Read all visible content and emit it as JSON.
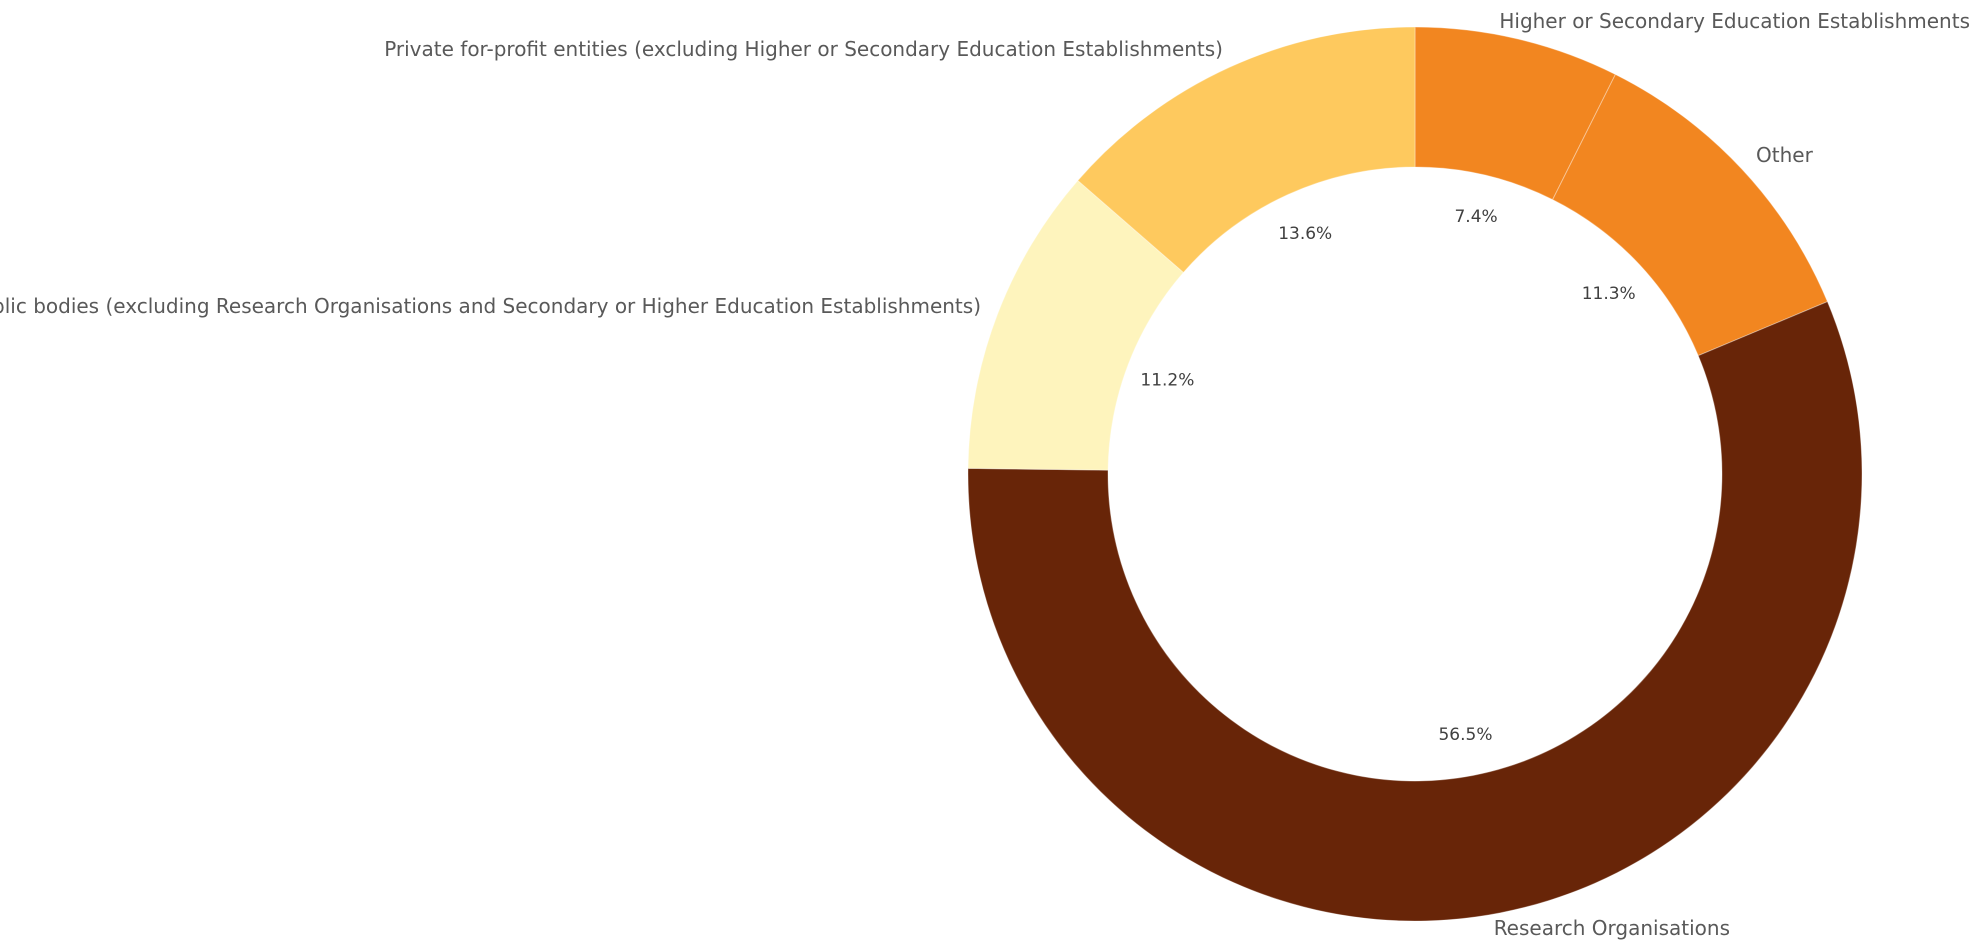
{
  "chart_data": {
    "type": "pie",
    "variant": "donut",
    "legend": "none",
    "slices": [
      {
        "label": "Higher or Secondary Education Establishments",
        "value": 7.4,
        "value_label": "7.4%",
        "color": "#f28620"
      },
      {
        "label": "Other",
        "value": 11.3,
        "value_label": "11.3%",
        "color": "#f28620"
      },
      {
        "label": "Research Organisations",
        "value": 56.5,
        "value_label": "56.5%",
        "color": "#682508"
      },
      {
        "label": "Public bodies (excluding Research Organisations and Secondary or Higher Education Establishments)",
        "value": 11.2,
        "value_label": "11.2%",
        "color": "#fef4bd"
      },
      {
        "label": "Private for-profit entities (excluding Higher or Secondary Education Establishments)",
        "value": 13.6,
        "value_label": "13.6%",
        "color": "#fec95e"
      }
    ]
  }
}
